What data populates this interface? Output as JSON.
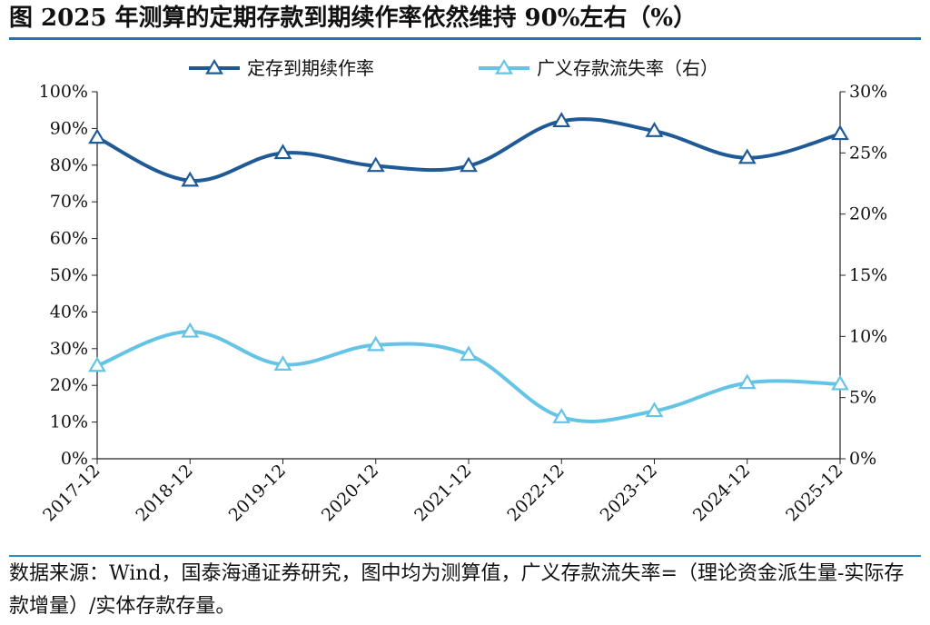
{
  "title": "图  2025 年测算的定期存款到期续作率依然维持 90%左右（%）",
  "source": "数据来源：Wind，国泰海通证券研究，图中均为测算值，广义存款流失率=（理论资金派生量-实际存款增量）/实体存款存量。",
  "colors": {
    "dark": "#1f5a96",
    "light": "#63c4e6",
    "rule": "#2a8fc1"
  },
  "chart_data": {
    "type": "line",
    "categories": [
      "2017-12",
      "2018-12",
      "2019-12",
      "2020-12",
      "2021-12",
      "2022-12",
      "2023-12",
      "2024-12",
      "2025-12"
    ],
    "left_axis": {
      "ylim": [
        0,
        100
      ],
      "ticks": [
        "0%",
        "10%",
        "20%",
        "30%",
        "40%",
        "50%",
        "60%",
        "70%",
        "80%",
        "90%",
        "100%"
      ]
    },
    "right_axis": {
      "ylim": [
        0,
        30
      ],
      "ticks": [
        "0%",
        "5%",
        "10%",
        "15%",
        "20%",
        "25%",
        "30%"
      ]
    },
    "legend_position": "top",
    "series": [
      {
        "name": "定存到期续作率",
        "axis": "left",
        "color": "#1f5a96",
        "values": [
          87.5,
          75.8,
          83.3,
          79.8,
          79.8,
          92.0,
          89.3,
          82.0,
          88.5
        ]
      },
      {
        "name": "广义存款流失率（右）",
        "axis": "right",
        "color": "#63c4e6",
        "values": [
          7.6,
          10.4,
          7.7,
          9.3,
          8.5,
          3.4,
          3.9,
          6.2,
          6.1
        ]
      }
    ],
    "grid": false
  }
}
